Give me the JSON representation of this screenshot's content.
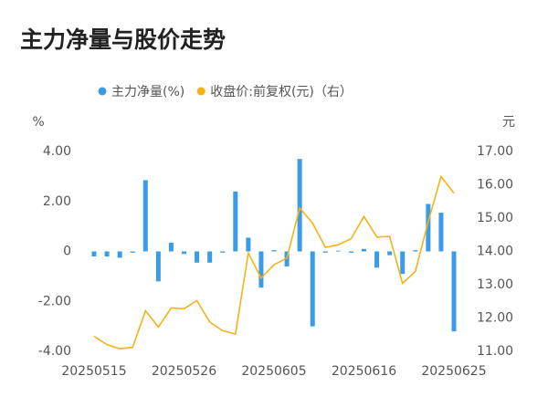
{
  "chart_data": {
    "type": "bar-line",
    "title": "主力净量与股价走势",
    "y_label": "%",
    "y2_label": "元",
    "categories": [
      "20250515",
      null,
      null,
      null,
      null,
      null,
      null,
      "20250526",
      null,
      null,
      null,
      null,
      null,
      null,
      "20250605",
      null,
      null,
      null,
      null,
      null,
      null,
      "20250616",
      null,
      null,
      null,
      null,
      null,
      null,
      "20250625"
    ],
    "series": [
      {
        "name": "主力净量(%)",
        "type": "bar",
        "color": "#3a9be8",
        "values": [
          -0.2,
          -0.2,
          -0.25,
          -0.05,
          2.85,
          -1.2,
          0.35,
          -0.1,
          -0.45,
          -0.45,
          -0.05,
          2.4,
          0.55,
          -1.45,
          0.05,
          -0.6,
          3.7,
          -3.0,
          -0.05,
          0.03,
          -0.05,
          0.1,
          -0.65,
          -0.15,
          -0.9,
          0.05,
          1.9,
          1.55,
          -3.2
        ]
      },
      {
        "name": "收盘价:前复权(元)（右）",
        "type": "line",
        "axis": "y2",
        "color": "#f5b316",
        "values": [
          11.45,
          11.2,
          11.08,
          11.12,
          12.22,
          11.73,
          12.3,
          12.28,
          12.52,
          11.88,
          11.62,
          11.52,
          13.95,
          13.2,
          13.6,
          13.8,
          15.3,
          14.85,
          14.12,
          14.2,
          14.38,
          15.05,
          14.43,
          14.45,
          13.04,
          13.4,
          14.9,
          16.25,
          15.75
        ]
      }
    ],
    "ylim": [
      -4,
      4
    ],
    "yticks": [
      {
        "value": 4,
        "label": "4.00"
      },
      {
        "value": 2,
        "label": "2.00"
      },
      0,
      {
        "value": -2,
        "label": "-2.00"
      },
      {
        "value": -4,
        "label": "-4.00"
      }
    ],
    "y2lim": [
      11,
      17
    ],
    "y2ticks": [
      {
        "value": 17,
        "label": "17.00"
      },
      {
        "value": 16,
        "label": "16.00"
      },
      {
        "value": 15,
        "label": "15.00"
      },
      {
        "value": 14,
        "label": "14.00"
      },
      {
        "value": 13,
        "label": "13.00"
      },
      {
        "value": 12,
        "label": "12.00"
      },
      {
        "value": 11,
        "label": "11.00"
      }
    ]
  }
}
